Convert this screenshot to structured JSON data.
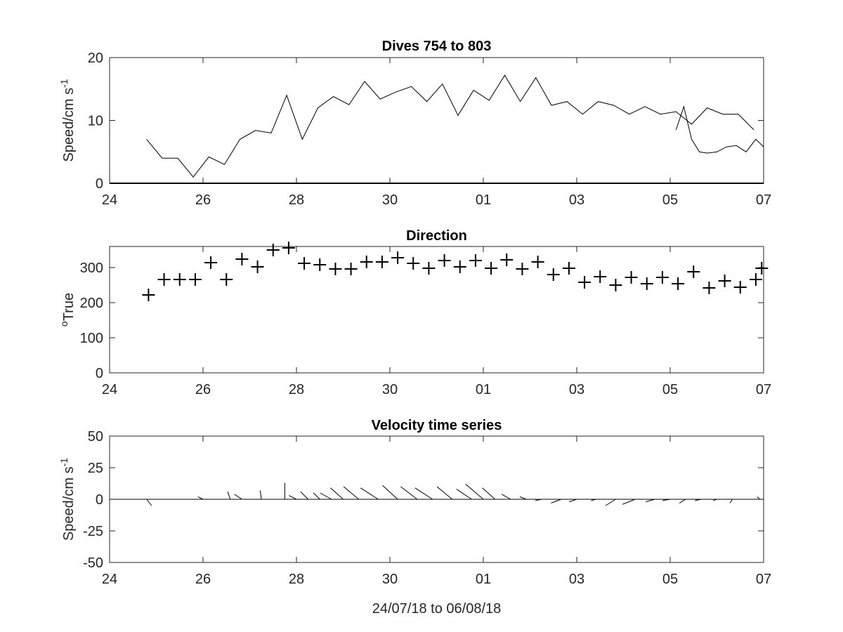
{
  "colors": {
    "ink": "#000000",
    "axis": "#262626",
    "background": "#ffffff"
  },
  "chart_data": [
    {
      "type": "line",
      "title": "Dives 754 to 803",
      "ylabel": "Speed/cm s",
      "ylabel_superscript": "-1",
      "xlabel": "",
      "xlim": [
        "2018-07-24",
        "2018-08-07"
      ],
      "ylim": [
        0,
        20
      ],
      "xtick_labels": [
        "24",
        "26",
        "28",
        "30",
        "01",
        "03",
        "05",
        "07"
      ],
      "ytick_labels": [
        "0",
        "10",
        "20"
      ],
      "grid": false,
      "series": [
        {
          "x": [
            "2018-07-24T19:00",
            "2018-07-25T03:00",
            "2018-07-25T11:00",
            "2018-07-25T19:00",
            "2018-07-26T03:00",
            "2018-07-26T11:00",
            "2018-07-26T19:00",
            "2018-07-27T03:00",
            "2018-07-27T11:00",
            "2018-07-27T19:00",
            "2018-07-28T03:00",
            "2018-07-28T11:00",
            "2018-07-28T19:00",
            "2018-07-29T03:00",
            "2018-07-29T11:00",
            "2018-07-29T19:00",
            "2018-07-30T03:00",
            "2018-07-30T11:00",
            "2018-07-30T19:00",
            "2018-07-31T03:00",
            "2018-07-31T11:00",
            "2018-07-31T19:00",
            "2018-08-01T03:00",
            "2018-08-01T11:00",
            "2018-08-01T19:00",
            "2018-08-02T03:00",
            "2018-08-02T11:00",
            "2018-08-02T19:00",
            "2018-08-03T03:00",
            "2018-08-03T11:00",
            "2018-08-03T19:00",
            "2018-08-04T03:00",
            "2018-08-04T11:00",
            "2018-08-04T19:00",
            "2018-08-05T03:00",
            "2018-08-05T11:00",
            "2018-08-05T19:00",
            "2018-08-06T03:00",
            "2018-08-06T11:00",
            "2018-08-06T19:00"
          ],
          "values": [
            7.0,
            4.0,
            4.0,
            1.0,
            4.2,
            3.0,
            7.0,
            8.4,
            8.0,
            14.0,
            7.0,
            12.0,
            13.8,
            12.5,
            16.2,
            13.4,
            14.5,
            15.4,
            13.0,
            15.8,
            10.8,
            14.8,
            13.2,
            17.2,
            13.0,
            16.8,
            12.4,
            13.0,
            11.0,
            13.0,
            12.4,
            11.0,
            12.2,
            11.0,
            11.4,
            9.4,
            12.0,
            11.0,
            11.0,
            8.5
          ]
        },
        {
          "x": [
            "2018-08-05T03:00",
            "2018-08-05T07:00",
            "2018-08-05T11:00",
            "2018-08-05T15:00",
            "2018-08-05T19:00",
            "2018-08-06T00:00",
            "2018-08-06T05:00",
            "2018-08-06T10:00",
            "2018-08-06T15:00",
            "2018-08-06T20:00",
            "2018-08-07T00:00"
          ],
          "values": [
            8.5,
            12.2,
            7.0,
            5.0,
            4.8,
            5.0,
            5.8,
            6.0,
            5.0,
            7.0,
            5.8
          ]
        }
      ]
    },
    {
      "type": "scatter",
      "title": "Direction",
      "ylabel": "True",
      "ylabel_prefix_superscript": "o",
      "xlabel": "",
      "xlim": [
        "2018-07-24",
        "2018-08-07"
      ],
      "ylim": [
        0,
        360
      ],
      "xtick_labels": [
        "24",
        "26",
        "28",
        "30",
        "01",
        "03",
        "05",
        "07"
      ],
      "ytick_labels": [
        "0",
        "100",
        "200",
        "300"
      ],
      "grid": false,
      "marker": "+",
      "x": [
        "2018-07-24T20:00",
        "2018-07-25T04:00",
        "2018-07-25T12:00",
        "2018-07-25T20:00",
        "2018-07-26T04:00",
        "2018-07-26T12:00",
        "2018-07-26T20:00",
        "2018-07-27T04:00",
        "2018-07-27T12:00",
        "2018-07-27T20:00",
        "2018-07-28T04:00",
        "2018-07-28T12:00",
        "2018-07-28T20:00",
        "2018-07-29T04:00",
        "2018-07-29T12:00",
        "2018-07-29T20:00",
        "2018-07-30T04:00",
        "2018-07-30T12:00",
        "2018-07-30T20:00",
        "2018-07-31T04:00",
        "2018-07-31T12:00",
        "2018-07-31T20:00",
        "2018-08-01T04:00",
        "2018-08-01T12:00",
        "2018-08-01T20:00",
        "2018-08-02T04:00",
        "2018-08-02T12:00",
        "2018-08-02T20:00",
        "2018-08-03T04:00",
        "2018-08-03T12:00",
        "2018-08-03T20:00",
        "2018-08-04T04:00",
        "2018-08-04T12:00",
        "2018-08-04T20:00",
        "2018-08-05T04:00",
        "2018-08-05T12:00",
        "2018-08-05T20:00",
        "2018-08-06T04:00",
        "2018-08-06T12:00",
        "2018-08-06T20:00",
        "2018-08-06T23:00"
      ],
      "values": [
        222,
        266,
        266,
        266,
        314,
        266,
        324,
        302,
        350,
        356,
        312,
        308,
        296,
        296,
        316,
        316,
        328,
        312,
        298,
        320,
        302,
        320,
        298,
        322,
        296,
        316,
        280,
        298,
        258,
        274,
        250,
        272,
        254,
        272,
        254,
        288,
        242,
        262,
        244,
        266,
        298
      ]
    },
    {
      "type": "quiver",
      "title": "Velocity time series",
      "ylabel": "Speed/cm s",
      "ylabel_superscript": "-1",
      "xlabel": "24/07/18 to 06/08/18",
      "xlim": [
        "2018-07-24",
        "2018-08-07"
      ],
      "ylim": [
        -50,
        50
      ],
      "xtick_labels": [
        "24",
        "26",
        "28",
        "30",
        "01",
        "03",
        "05",
        "07"
      ],
      "ytick_labels": [
        "-50",
        "-25",
        "0",
        "25",
        "50"
      ],
      "grid": false,
      "baseline_y": 0,
      "x": [
        "2018-07-24T19:00",
        "2018-07-26T00:00",
        "2018-07-26T14:00",
        "2018-07-26T20:00",
        "2018-07-27T06:00",
        "2018-07-27T18:00",
        "2018-07-28T00:00",
        "2018-07-28T06:00",
        "2018-07-28T12:00",
        "2018-07-28T18:00",
        "2018-07-29T00:00",
        "2018-07-29T08:00",
        "2018-07-29T18:00",
        "2018-07-30T04:00",
        "2018-07-30T14:00",
        "2018-07-30T22:00",
        "2018-07-31T08:00",
        "2018-07-31T18:00",
        "2018-08-01T00:00",
        "2018-08-01T06:00",
        "2018-08-01T14:00",
        "2018-08-01T22:00",
        "2018-08-02T06:00",
        "2018-08-02T16:00",
        "2018-08-03T00:00",
        "2018-08-03T10:00",
        "2018-08-03T20:00",
        "2018-08-04T06:00",
        "2018-08-04T16:00",
        "2018-08-05T00:00",
        "2018-08-05T08:00",
        "2018-08-05T16:00",
        "2018-08-06T00:00",
        "2018-08-06T08:00",
        "2018-08-06T16:00",
        "2018-08-06T22:00"
      ],
      "u": [
        4,
        -4,
        -2,
        -6,
        -1,
        0,
        -6,
        -6,
        -5,
        -9,
        -10,
        -12,
        -14,
        -12,
        -13,
        -14,
        -12,
        -12,
        -14,
        -10,
        -7,
        -5,
        -5,
        -8,
        -6,
        -4,
        -8,
        -10,
        -7,
        -6,
        -5,
        -5,
        -3,
        -2,
        -2,
        -2
      ],
      "v": [
        -5,
        2,
        6,
        4,
        7,
        13,
        3,
        6,
        5,
        5,
        9,
        10,
        9,
        11,
        10,
        9,
        10,
        8,
        12,
        9,
        4,
        2,
        -1,
        -3,
        -2,
        -1,
        -5,
        -4,
        -2,
        -1,
        -3,
        -1,
        -1,
        -3,
        0,
        2
      ]
    }
  ]
}
